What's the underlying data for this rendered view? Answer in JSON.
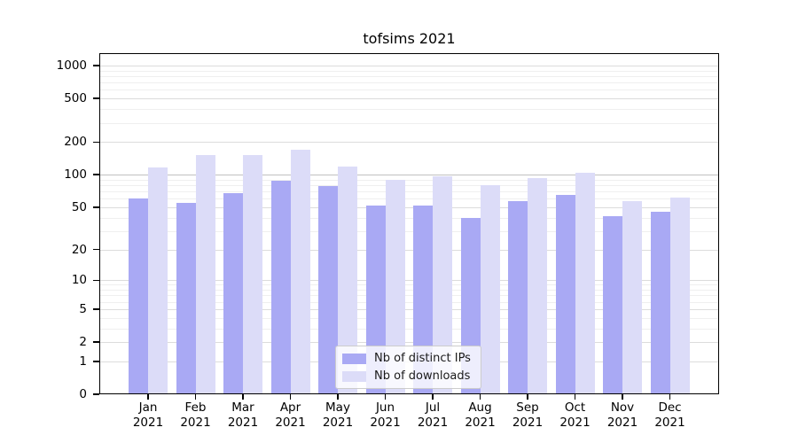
{
  "chart_data": {
    "type": "bar",
    "title": "tofsims 2021",
    "categories": [
      "Jan",
      "Feb",
      "Mar",
      "Apr",
      "May",
      "Jun",
      "Jul",
      "Aug",
      "Sep",
      "Oct",
      "Nov",
      "Dec"
    ],
    "x_year_label": "2021",
    "series": [
      {
        "name": "Nb of distinct IPs",
        "color": "#a9a9f4",
        "values": [
          60,
          55,
          67,
          88,
          78,
          52,
          52,
          40,
          57,
          65,
          41,
          45
        ]
      },
      {
        "name": "Nb of downloads",
        "color": "#dcdcf8",
        "values": [
          116,
          152,
          153,
          170,
          120,
          90,
          96,
          80,
          94,
          105,
          57,
          61
        ]
      }
    ],
    "y_axis": {
      "scale": "log1p",
      "tick_values": [
        0,
        1,
        2,
        5,
        10,
        20,
        50,
        100,
        200,
        500,
        1000
      ],
      "range": [
        0,
        1300
      ],
      "grid": true
    },
    "legend_position": "lower center",
    "grid_colors": {
      "minor": "#efefef",
      "major": "#dcdcdc",
      "emphasis_100": "#c0c0c0"
    }
  }
}
